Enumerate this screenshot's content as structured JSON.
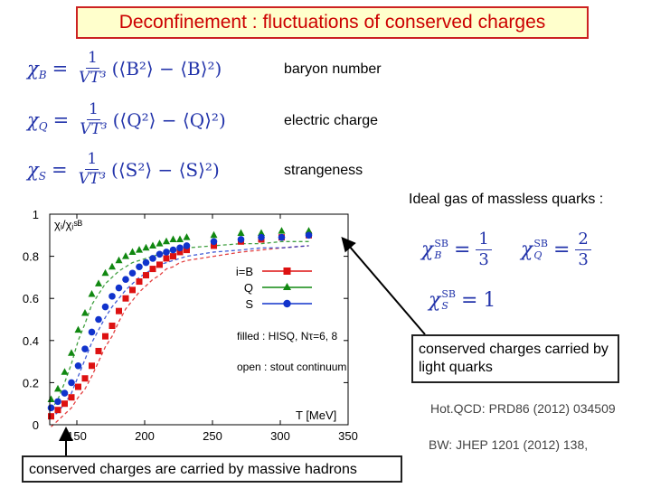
{
  "title": "Deconfinement : fluctuations of conserved charges",
  "equations": [
    {
      "chi": "χ",
      "sub": "B",
      "num": "1",
      "den": "VT³",
      "rest": "(⟨B²⟩ − ⟨B⟩²)",
      "label": "baryon number"
    },
    {
      "chi": "χ",
      "sub": "Q",
      "num": "1",
      "den": "VT³",
      "rest": "(⟨Q²⟩ − ⟨Q⟩²)",
      "label": "electric charge"
    },
    {
      "chi": "χ",
      "sub": "S",
      "num": "1",
      "den": "VT³",
      "rest": "(⟨S²⟩ − ⟨S⟩²)",
      "label": "strangeness"
    }
  ],
  "ideal_gas": {
    "heading": "Ideal gas of massless quarks :",
    "items": [
      {
        "sup": "SB",
        "sub": "B",
        "num": "1",
        "den": "3"
      },
      {
        "sup": "SB",
        "sub": "Q",
        "num": "2",
        "den": "3"
      },
      {
        "sup": "SB",
        "sub": "S",
        "value": "1"
      }
    ]
  },
  "callouts": {
    "quarks": "conserved charges carried by light quarks",
    "hadrons": "conserved charges are carried by massive hadrons"
  },
  "references": [
    "Hot.QCD: PRD86 (2012) 034509",
    "BW: JHEP 1201 (2012) 138,"
  ],
  "chart_data": {
    "type": "scatter",
    "ylabel": "χᵢ/χᵢˢᴮ",
    "xlabel": "T [MeV]",
    "xlim": [
      130,
      350
    ],
    "ylim": [
      0,
      1
    ],
    "x_ticks": [
      150,
      200,
      250,
      300,
      350
    ],
    "y_ticks": [
      0,
      0.2,
      0.4,
      0.6,
      0.8,
      1
    ],
    "legend": {
      "entries": [
        "i=B",
        "Q",
        "S"
      ],
      "position": "right"
    },
    "annotations": [
      "filled : HISQ, Nτ=6, 8",
      "open : stout continuum"
    ],
    "colors": {
      "B": "#dd1111",
      "Q": "#118811",
      "S": "#1133cc"
    },
    "series": [
      {
        "name": "B",
        "marker": "square",
        "x": [
          131,
          136,
          141,
          146,
          151,
          156,
          161,
          166,
          171,
          176,
          181,
          186,
          191,
          196,
          201,
          206,
          211,
          216,
          221,
          226,
          231,
          251,
          271,
          286,
          301,
          321
        ],
        "y": [
          0.04,
          0.07,
          0.1,
          0.13,
          0.18,
          0.22,
          0.28,
          0.35,
          0.42,
          0.47,
          0.54,
          0.6,
          0.64,
          0.68,
          0.71,
          0.74,
          0.76,
          0.79,
          0.8,
          0.82,
          0.83,
          0.85,
          0.87,
          0.88,
          0.89,
          0.9
        ]
      },
      {
        "name": "Q",
        "marker": "triangle",
        "x": [
          131,
          136,
          141,
          146,
          151,
          156,
          161,
          166,
          171,
          176,
          181,
          186,
          191,
          196,
          201,
          206,
          211,
          216,
          221,
          226,
          231,
          251,
          271,
          286,
          301,
          321
        ],
        "y": [
          0.12,
          0.17,
          0.25,
          0.34,
          0.45,
          0.53,
          0.62,
          0.67,
          0.72,
          0.75,
          0.78,
          0.8,
          0.82,
          0.83,
          0.84,
          0.85,
          0.86,
          0.87,
          0.88,
          0.88,
          0.89,
          0.9,
          0.91,
          0.91,
          0.92,
          0.92
        ]
      },
      {
        "name": "S",
        "marker": "circle",
        "x": [
          131,
          136,
          141,
          146,
          151,
          156,
          161,
          166,
          171,
          176,
          181,
          186,
          191,
          196,
          201,
          206,
          211,
          216,
          221,
          226,
          231,
          251,
          271,
          286,
          301,
          321
        ],
        "y": [
          0.08,
          0.11,
          0.15,
          0.2,
          0.28,
          0.36,
          0.44,
          0.5,
          0.56,
          0.61,
          0.65,
          0.69,
          0.72,
          0.75,
          0.77,
          0.79,
          0.81,
          0.82,
          0.83,
          0.84,
          0.85,
          0.87,
          0.88,
          0.89,
          0.89,
          0.9
        ]
      }
    ]
  }
}
